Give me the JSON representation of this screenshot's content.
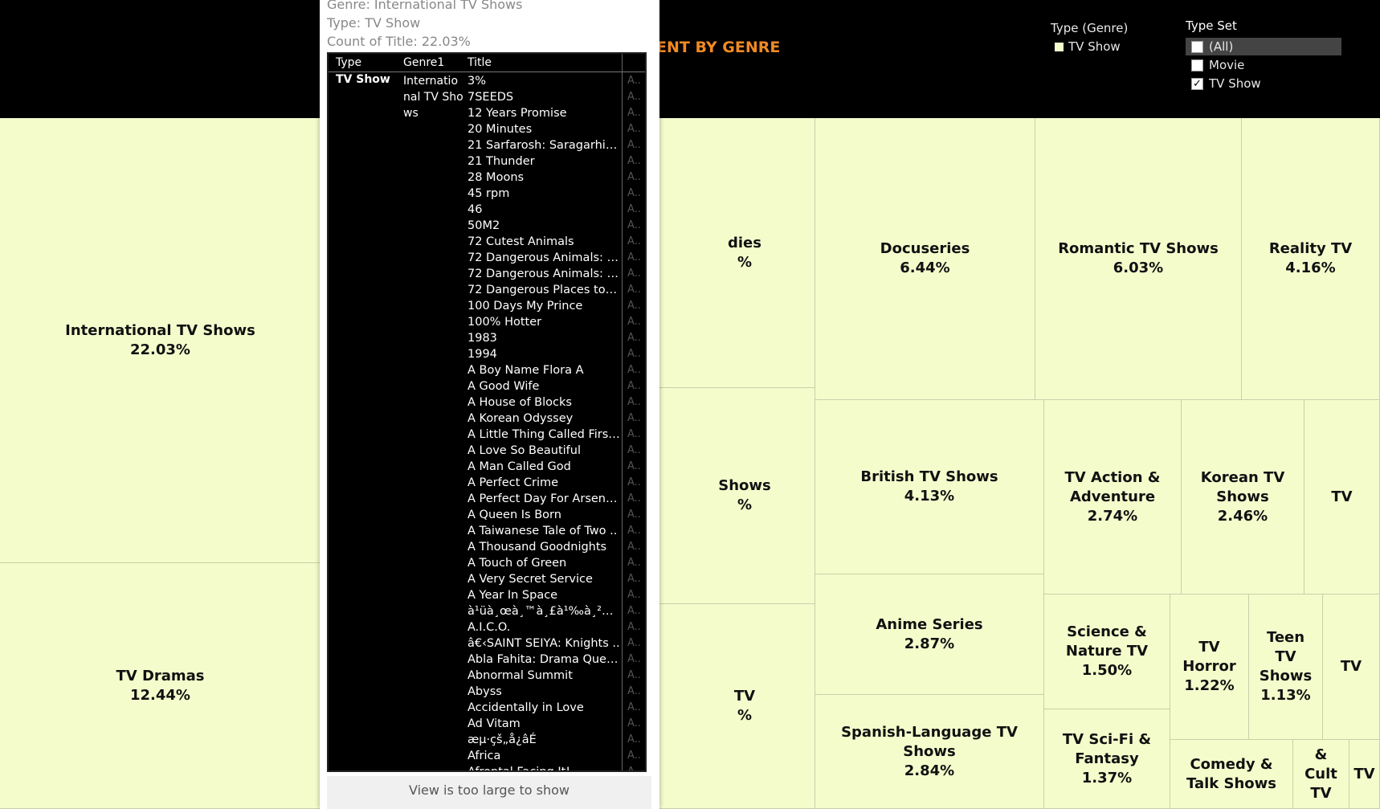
{
  "header": {
    "title": "ENT BY GENRE"
  },
  "legend_type_genre": {
    "title": "Type (Genre)",
    "items": [
      {
        "label": "TV Show",
        "color": "#f5fccc"
      }
    ]
  },
  "type_set": {
    "title": "Type Set",
    "options": [
      {
        "label": "(All)",
        "checked": false,
        "highlighted": true
      },
      {
        "label": "Movie",
        "checked": false
      },
      {
        "label": "TV Show",
        "checked": true
      }
    ]
  },
  "tiles": [
    {
      "id": "international",
      "name": "International TV Shows",
      "pct": "22.03%"
    },
    {
      "id": "dramas",
      "name": "TV Dramas",
      "pct": "12.44%"
    },
    {
      "id": "comedies",
      "name": "dies",
      "pct": "%"
    },
    {
      "id": "crime",
      "name": "Shows",
      "pct": "%"
    },
    {
      "id": "kids",
      "name": "TV",
      "pct": "%"
    },
    {
      "id": "docuseries",
      "name": "Docuseries",
      "pct": "6.44%"
    },
    {
      "id": "romantic",
      "name": "Romantic TV Shows",
      "pct": "6.03%"
    },
    {
      "id": "reality",
      "name": "Reality TV",
      "pct": "4.16%"
    },
    {
      "id": "british",
      "name": "British TV Shows",
      "pct": "4.13%"
    },
    {
      "id": "action",
      "name": "TV Action & Adventure",
      "pct": "2.74%"
    },
    {
      "id": "korean",
      "name": "Korean TV Shows",
      "pct": "2.46%"
    },
    {
      "id": "tv1",
      "name": "TV",
      "pct": ""
    },
    {
      "id": "anime",
      "name": "Anime Series",
      "pct": "2.87%"
    },
    {
      "id": "science",
      "name": "Science & Nature TV",
      "pct": "1.50%"
    },
    {
      "id": "horror",
      "name": "TV Horror",
      "pct": "1.22%"
    },
    {
      "id": "teen",
      "name": "Teen TV Shows",
      "pct": "1.13%"
    },
    {
      "id": "tv2",
      "name": "TV",
      "pct": ""
    },
    {
      "id": "spanish",
      "name": "Spanish-Language TV Shows",
      "pct": "2.84%"
    },
    {
      "id": "scifi",
      "name": "TV Sci-Fi & Fantasy",
      "pct": "1.37%"
    },
    {
      "id": "comedytalk",
      "name": "Comedy & Talk Shows",
      "pct": ""
    },
    {
      "id": "cult",
      "name": "& Cult TV",
      "pct": ""
    },
    {
      "id": "tv3",
      "name": "TV",
      "pct": ""
    }
  ],
  "tooltip": {
    "genre_line": "Genre: International TV Shows",
    "type_line": "Type: TV Show",
    "count_line": "Count of Title: 22.03%",
    "columns": [
      "Type",
      "Genre1",
      "Title"
    ],
    "type_value": "TV Show",
    "genre_lines": [
      "Internatio",
      "nal TV Sho",
      "ws"
    ],
    "titles": [
      "3%",
      "7SEEDS",
      "12 Years Promise",
      "20 Minutes",
      "21 Sarfarosh: Saragarhi 1..",
      "21 Thunder",
      "28 Moons",
      "45 rpm",
      "46",
      "50M2",
      "72 Cutest Animals",
      "72 Dangerous Animals: A..",
      "72 Dangerous Animals: La..",
      "72 Dangerous Places to Li..",
      "100 Days My Prince",
      "100% Hotter",
      "1983",
      "1994",
      "A Boy Name Flora A",
      "A Good Wife",
      "A House of Blocks",
      "A Korean Odyssey",
      "A Little Thing Called First ..",
      "A Love So Beautiful",
      "A Man Called God",
      "A Perfect Crime",
      "A Perfect Day For Arsenide",
      "A Queen Is Born",
      "A Taiwanese Tale of Two ..",
      "A Thousand Goodnights",
      "A Touch of Green",
      "A Very Secret Service",
      "A Year In Space",
      "à¹üà¸œà¸™à¸£à¹‰à¸²à¸..",
      "A.I.C.O.",
      "â€‹SAINT SEIYA: Knights ..",
      "Abla Fahita: Drama Queen",
      "Abnormal Summit",
      "Abyss",
      "Accidentally in Love",
      "Ad Vitam",
      "æµ·çš„å¿âÉ",
      "Africa",
      "Afrontal Facing It!"
    ],
    "extra_col": "A..",
    "footer": "View is too large to show"
  }
}
